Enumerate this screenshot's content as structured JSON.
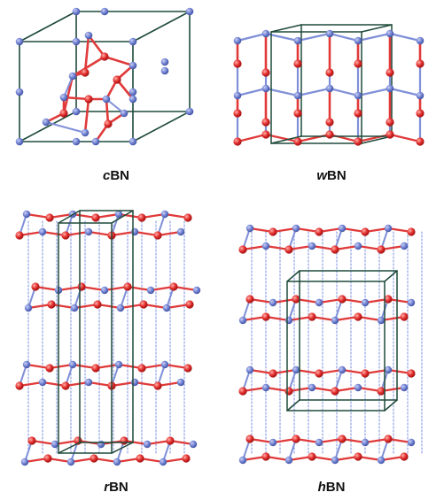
{
  "panels": [
    {
      "id": "cbn",
      "prefix": "c",
      "suffix": "BN"
    },
    {
      "id": "wbn",
      "prefix": "w",
      "suffix": "BN"
    },
    {
      "id": "rbn",
      "prefix": "r",
      "suffix": "BN"
    },
    {
      "id": "hbn",
      "prefix": "h",
      "suffix": "BN"
    }
  ],
  "colors": {
    "boron_atom": "#6e7fd0",
    "nitrogen_atom": "#e02a2a",
    "bond_red": "#e03a3a",
    "bond_blue": "#8090d8",
    "cell_line": "#1f4a3a",
    "interlayer": "#7a8fe0"
  }
}
